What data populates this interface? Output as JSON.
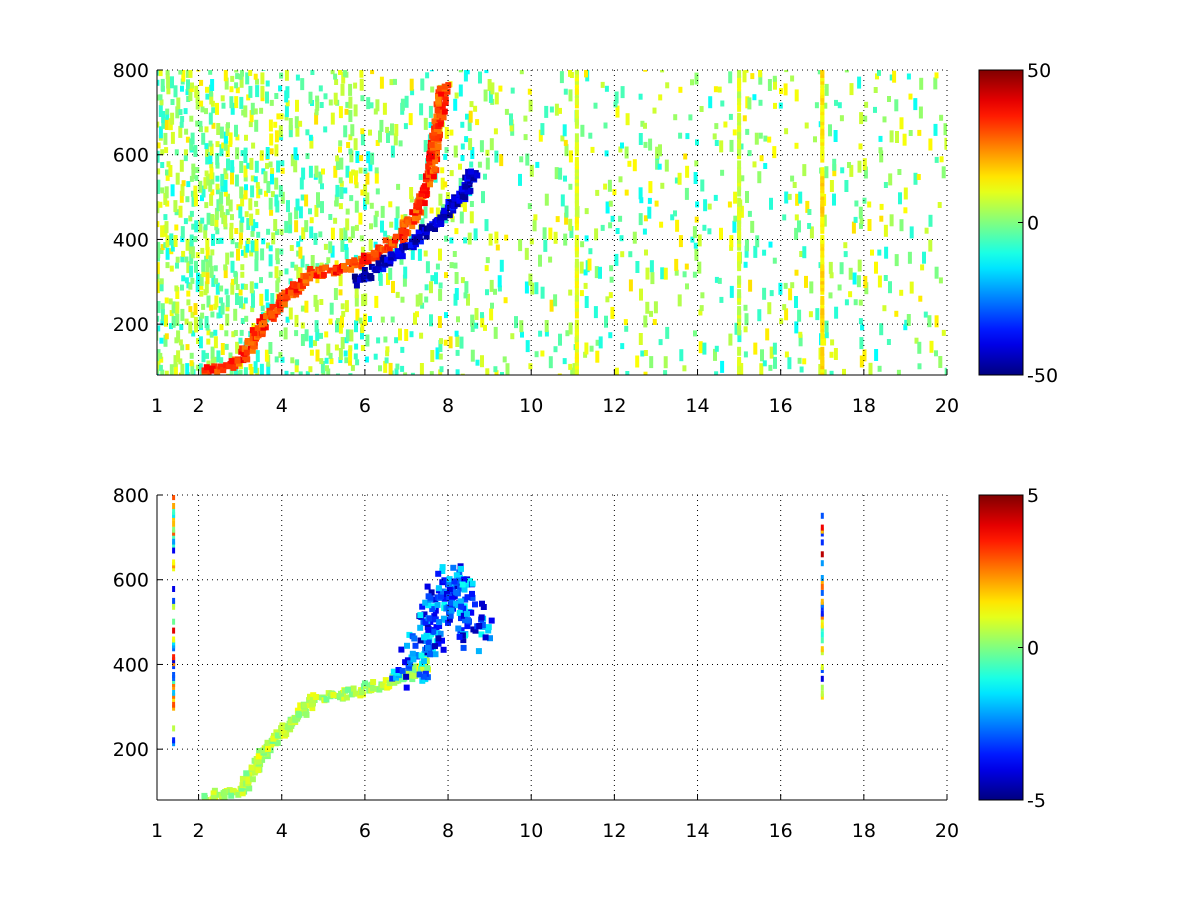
{
  "chart_data": [
    {
      "type": "heatmap",
      "title": "",
      "xlabel": "",
      "ylabel": "",
      "xlim": [
        1,
        20
      ],
      "ylim": [
        80,
        800
      ],
      "xticks": [
        1,
        2,
        4,
        6,
        8,
        10,
        12,
        14,
        16,
        18,
        20
      ],
      "yticks": [
        200,
        400,
        600,
        800
      ],
      "grid": true,
      "colormap": "jet",
      "colorbar": {
        "limits": [
          -50,
          50
        ],
        "ticks": [
          50,
          0,
          -50
        ]
      },
      "features": [
        {
          "name": "",
          "desc": "ridge",
          "points": [
            [
              2.2,
              90
            ],
            [
              3.0,
              110
            ],
            [
              3.6,
              205
            ],
            [
              4.2,
              270
            ],
            [
              4.7,
              320
            ],
            [
              5.5,
              330
            ],
            [
              6.2,
              360
            ],
            [
              6.8,
              400
            ],
            [
              7.3,
              470
            ],
            [
              7.6,
              560
            ],
            [
              7.7,
              640
            ],
            [
              7.9,
              760
            ]
          ],
          "value": 32
        },
        {
          "name": "",
          "desc": "branch",
          "points": [
            [
              5.8,
              300
            ],
            [
              6.5,
              350
            ],
            [
              7.0,
              380
            ],
            [
              7.6,
              430
            ],
            [
              8.0,
              470
            ],
            [
              8.4,
              510
            ],
            [
              8.6,
              560
            ]
          ],
          "value": -42
        }
      ],
      "strong_columns": [
        {
          "x": 11.1,
          "value": 10
        },
        {
          "x": 15.0,
          "value": 8
        },
        {
          "x": 17.0,
          "value": 15
        }
      ]
    },
    {
      "type": "heatmap",
      "title": "",
      "xlabel": "",
      "ylabel": "",
      "xlim": [
        1,
        20
      ],
      "ylim": [
        80,
        800
      ],
      "xticks": [
        1,
        2,
        4,
        6,
        8,
        10,
        12,
        14,
        16,
        18,
        20
      ],
      "yticks": [
        200,
        400,
        600,
        800
      ],
      "grid": true,
      "colormap": "jet",
      "colorbar": {
        "limits": [
          -5,
          5
        ],
        "ticks": [
          5,
          0,
          -5
        ]
      },
      "features": [
        {
          "name": "",
          "desc": "ridge",
          "points": [
            [
              2.2,
              90
            ],
            [
              3.0,
              100
            ],
            [
              3.7,
              210
            ],
            [
              4.3,
              270
            ],
            [
              4.8,
              320
            ],
            [
              5.5,
              330
            ],
            [
              6.3,
              350
            ],
            [
              7.0,
              370
            ],
            [
              7.5,
              400
            ]
          ],
          "value": 0.5
        },
        {
          "name": "",
          "desc": "cluster",
          "points": [
            [
              7.0,
              380
            ],
            [
              7.4,
              440
            ],
            [
              7.7,
              520
            ],
            [
              8.0,
              600
            ],
            [
              8.4,
              560
            ],
            [
              8.7,
              470
            ]
          ],
          "value": -2.8
        }
      ],
      "columns": [
        {
          "x": 1.4,
          "ymin": 200,
          "ymax": 800
        },
        {
          "x": 17.0,
          "ymin": 310,
          "ymax": 760
        }
      ]
    }
  ]
}
